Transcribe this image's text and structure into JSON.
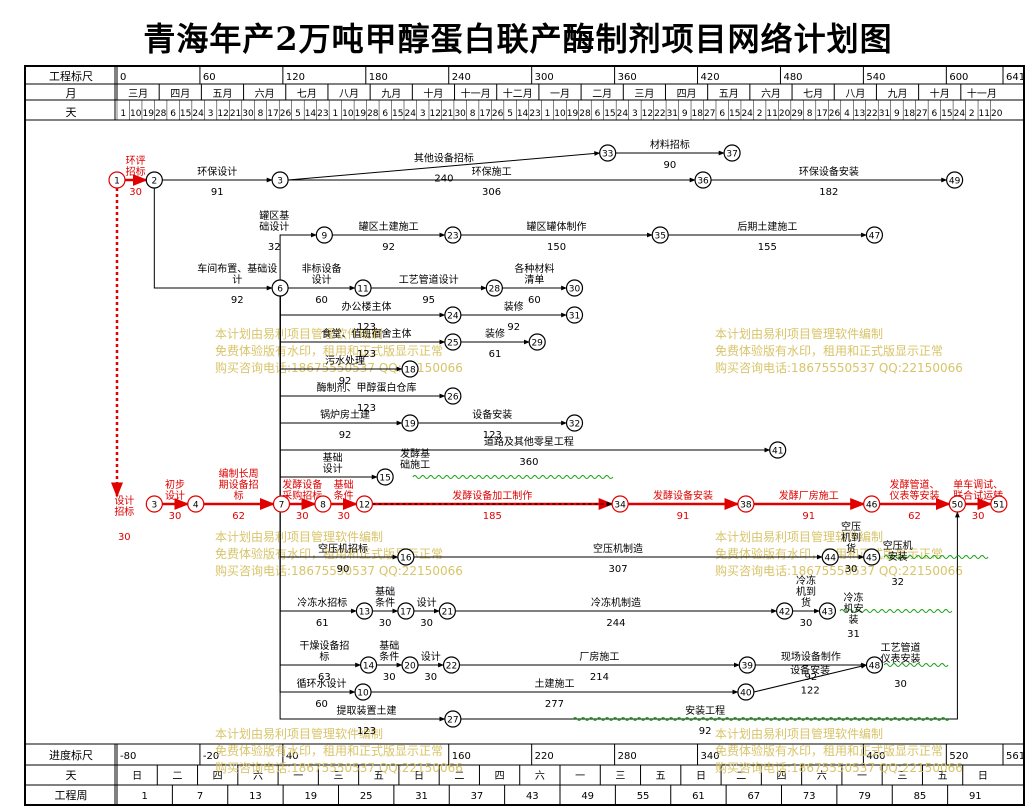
{
  "title": "青海年产2万吨甲醇蛋白联产酶制剂项目网络计划图",
  "top_scale": {
    "label": "工程标尺",
    "ticks": [
      {
        "v": 0,
        "t": "0"
      },
      {
        "v": 60,
        "t": "60"
      },
      {
        "v": 120,
        "t": "120"
      },
      {
        "v": 180,
        "t": "180"
      },
      {
        "v": 240,
        "t": "240"
      },
      {
        "v": 300,
        "t": "300"
      },
      {
        "v": 360,
        "t": "360"
      },
      {
        "v": 420,
        "t": "420"
      },
      {
        "v": 480,
        "t": "480"
      },
      {
        "v": 540,
        "t": "540"
      },
      {
        "v": 600,
        "t": "600"
      },
      {
        "v": 641,
        "t": "641"
      }
    ]
  },
  "month_row": {
    "label": "月",
    "months": [
      "三月",
      "四月",
      "五月",
      "六月",
      "七月",
      "八月",
      "九月",
      "十月",
      "十一月",
      "十二月",
      "一月",
      "二月",
      "三月",
      "四月",
      "五月",
      "六月",
      "七月",
      "八月",
      "九月",
      "十月",
      "十一月"
    ]
  },
  "day_row": {
    "label": "天",
    "days": "1 10 19 28 6 15 24 3 12 21 30 8 17 26 5 14 23 1 10 19 28 6 15 24 3 12 21 30 8 17 26 5 14 23 1 10 19 28 6 15 24 3 12 22 31 9 18 27 6 15 24 2 11 20 29 8 17 26 4 13 22 31 9 18 27 6 15 24 2 11 20"
  },
  "bottom_scale": {
    "label": "进度标尺",
    "ticks": [
      {
        "v": 0,
        "t": "-80"
      },
      {
        "v": 60,
        "t": "-20"
      },
      {
        "v": 120,
        "t": "40"
      },
      {
        "v": 240,
        "t": "160"
      },
      {
        "v": 300,
        "t": "220"
      },
      {
        "v": 360,
        "t": "280"
      },
      {
        "v": 420,
        "t": "340"
      },
      {
        "v": 540,
        "t": "460"
      },
      {
        "v": 600,
        "t": "520"
      },
      {
        "v": 641,
        "t": "561"
      }
    ],
    "weekday_label": "天",
    "weekdays": [
      "日",
      "二",
      "四",
      "六",
      "一",
      "三",
      "五",
      "日",
      "二",
      "四",
      "六",
      "一",
      "三",
      "五",
      "日",
      "二",
      "四",
      "六",
      "一",
      "三",
      "五",
      "日"
    ],
    "week_label": "工程周",
    "weeks": [
      "1",
      "7",
      "13",
      "19",
      "25",
      "31",
      "37",
      "43",
      "49",
      "55",
      "61",
      "67",
      "73",
      "79",
      "85",
      "91"
    ]
  },
  "watermark": [
    "本计划由易利项目管理软件编制",
    "免费体验版有水印，租用和正式版显示正常",
    "购买咨询电话:18675550537 QQ:22150066"
  ],
  "nodes": [
    {
      "id": "1",
      "d": 0,
      "y": 180,
      "crit": true
    },
    {
      "id": "2",
      "d": 27,
      "y": 180
    },
    {
      "id": "3",
      "d": 118,
      "y": 180
    },
    {
      "id": "6",
      "d": 118,
      "y": 288
    },
    {
      "id": "9",
      "d": 150,
      "y": 235
    },
    {
      "id": "11",
      "d": 178,
      "y": 288
    },
    {
      "id": "24",
      "d": 243,
      "y": 315
    },
    {
      "id": "31",
      "d": 331,
      "y": 315
    },
    {
      "id": "25",
      "d": 243,
      "y": 342
    },
    {
      "id": "29",
      "d": 304,
      "y": 342
    },
    {
      "id": "18",
      "d": 212,
      "y": 369
    },
    {
      "id": "26",
      "d": 243,
      "y": 396
    },
    {
      "id": "19",
      "d": 212,
      "y": 423
    },
    {
      "id": "32",
      "d": 331,
      "y": 423
    },
    {
      "id": "41",
      "d": 478,
      "y": 450
    },
    {
      "id": "15",
      "d": 194,
      "y": 477
    },
    {
      "id": "23",
      "d": 243,
      "y": 235
    },
    {
      "id": "35",
      "d": 393,
      "y": 235
    },
    {
      "id": "47",
      "d": 548,
      "y": 235
    },
    {
      "id": "28",
      "d": 273,
      "y": 288
    },
    {
      "id": "30",
      "d": 331,
      "y": 288
    },
    {
      "id": "33",
      "d": 355,
      "y": 153
    },
    {
      "id": "37",
      "d": 445,
      "y": 153
    },
    {
      "id": "36",
      "d": 424,
      "y": 180
    },
    {
      "id": "49",
      "d": 606,
      "y": 180
    },
    {
      "id": "3b",
      "label": "3",
      "d": 27,
      "y": 504,
      "crit": true
    },
    {
      "id": "4",
      "d": 57,
      "y": 504,
      "crit": true
    },
    {
      "id": "7",
      "d": 119,
      "y": 504,
      "crit": true
    },
    {
      "id": "8",
      "d": 149,
      "y": 504,
      "crit": true
    },
    {
      "id": "12",
      "d": 179,
      "y": 504,
      "crit": true
    },
    {
      "id": "34",
      "d": 364,
      "y": 504,
      "crit": true
    },
    {
      "id": "38",
      "d": 455,
      "y": 504,
      "crit": true
    },
    {
      "id": "46",
      "d": 546,
      "y": 504,
      "crit": true
    },
    {
      "id": "50",
      "d": 608,
      "y": 504,
      "crit": true
    },
    {
      "id": "51",
      "d": 638,
      "y": 504,
      "crit": true
    },
    {
      "id": "16",
      "d": 209,
      "y": 557
    },
    {
      "id": "44",
      "d": 516,
      "y": 557
    },
    {
      "id": "45",
      "d": 546,
      "y": 557
    },
    {
      "id": "13",
      "d": 179,
      "y": 611
    },
    {
      "id": "17",
      "d": 209,
      "y": 611
    },
    {
      "id": "21",
      "d": 239,
      "y": 611
    },
    {
      "id": "42",
      "d": 483,
      "y": 611
    },
    {
      "id": "43",
      "d": 514,
      "y": 611
    },
    {
      "id": "14",
      "d": 182,
      "y": 665
    },
    {
      "id": "20",
      "d": 212,
      "y": 665
    },
    {
      "id": "22",
      "d": 242,
      "y": 665
    },
    {
      "id": "39",
      "d": 456,
      "y": 665
    },
    {
      "id": "48",
      "d": 548,
      "y": 665
    },
    {
      "id": "10",
      "d": 178,
      "y": 692
    },
    {
      "id": "40",
      "d": 455,
      "y": 692
    },
    {
      "id": "27",
      "d": 243,
      "y": 719
    }
  ],
  "activities": [
    {
      "f": "1",
      "t": "2",
      "name": "环评\n招标",
      "dur": "30",
      "crit": true
    },
    {
      "f": "2",
      "t": "3",
      "name": "环保设计",
      "dur": "91"
    },
    {
      "f": "3",
      "t": "33",
      "name": "其他设备招标",
      "dur": "240"
    },
    {
      "f": "33",
      "t": "37",
      "name": "材料招标",
      "dur": "90"
    },
    {
      "f": "3",
      "t": "36",
      "name": "环保施工",
      "dur": "306"
    },
    {
      "f": "36",
      "t": "49",
      "name": "环保设备安装",
      "dur": "182"
    },
    {
      "f": "6",
      "t": "9",
      "path": "vh",
      "name": "罐区基\n础设计",
      "dur": "32",
      "lx": -28
    },
    {
      "f": "9",
      "t": "23",
      "name": "罐区土建施工",
      "dur": "92"
    },
    {
      "f": "23",
      "t": "35",
      "name": "罐区罐体制作",
      "dur": "150"
    },
    {
      "f": "35",
      "t": "47",
      "name": "后期土建施工",
      "dur": "155"
    },
    {
      "f": "2",
      "t": "6",
      "path": "vh",
      "name": "车间布置、基础设\n计",
      "dur": "92",
      "lx": 20
    },
    {
      "f": "6",
      "t": "11",
      "name": "非标设备\n设计",
      "dur": "60"
    },
    {
      "f": "11",
      "t": "28",
      "name": "工艺管道设计",
      "dur": "95"
    },
    {
      "f": "28",
      "t": "30",
      "name": "各种材料\n清单",
      "dur": "60"
    },
    {
      "f": "6",
      "t": "24",
      "path": "vh",
      "name": "办公楼主体",
      "dur": "123"
    },
    {
      "f": "24",
      "t": "31",
      "name": "装修",
      "dur": "92"
    },
    {
      "f": "6",
      "t": "25",
      "path": "vh",
      "name": "食堂、值班宿舍主体",
      "dur": "123"
    },
    {
      "f": "25",
      "t": "29",
      "name": "装修",
      "dur": "61"
    },
    {
      "f": "6",
      "t": "18",
      "path": "vh",
      "name": "污水处理",
      "dur": "92"
    },
    {
      "f": "6",
      "t": "26",
      "path": "vh",
      "name": "酶制剂、甲醇蛋白仓库",
      "dur": "123"
    },
    {
      "f": "6",
      "t": "19",
      "path": "vh",
      "name": "锅炉房土建",
      "dur": "92"
    },
    {
      "f": "19",
      "t": "32",
      "name": "设备安装",
      "dur": "123"
    },
    {
      "f": "6",
      "t": "41",
      "path": "vh",
      "name": "道路及其他零星工程",
      "dur": "360"
    },
    {
      "f": "3b",
      "t": "4",
      "name": "初步\n设计",
      "dur": "30",
      "crit": true
    },
    {
      "f": "4",
      "t": "7",
      "name": "编制长周\n期设备招\n标",
      "dur": "62",
      "crit": true
    },
    {
      "f": "7",
      "t": "8",
      "name": "发酵设备\n采购招标",
      "dur": "30",
      "crit": true
    },
    {
      "f": "8",
      "t": "12",
      "name": "基础\n条件",
      "dur": "30",
      "crit": true
    },
    {
      "f": "12",
      "t": "34",
      "name": "发酵设备加工制作",
      "dur": "185",
      "crit": true
    },
    {
      "f": "34",
      "t": "38",
      "name": "发酵设备安装",
      "dur": "91",
      "crit": true
    },
    {
      "f": "38",
      "t": "46",
      "name": "发酵厂房施工",
      "dur": "91",
      "crit": true
    },
    {
      "f": "46",
      "t": "50",
      "name": "发酵管道、\n仪表等安装",
      "dur": "62",
      "crit": true
    },
    {
      "f": "50",
      "t": "51",
      "name": "单车调试、\n联合试运转",
      "dur": "30",
      "crit": true
    },
    {
      "f": "6",
      "t": "15",
      "path": "vh",
      "name": "基础\n设计",
      "dur": ""
    },
    {
      "f": "6",
      "t": "16",
      "path": "vh",
      "name": "空压机招标",
      "dur": "90"
    },
    {
      "f": "16",
      "t": "44",
      "name": "空压机制造",
      "dur": "307"
    },
    {
      "f": "44",
      "t": "45",
      "name": "空压\n机到\n货",
      "dur": "30"
    },
    {
      "f": "6",
      "t": "13",
      "path": "vh",
      "name": "冷冻水招标",
      "dur": "61"
    },
    {
      "f": "13",
      "t": "17",
      "name": "基础\n条件",
      "dur": "30"
    },
    {
      "f": "17",
      "t": "21",
      "name": "设计",
      "dur": "30"
    },
    {
      "f": "21",
      "t": "42",
      "name": "冷冻机制造",
      "dur": "244"
    },
    {
      "f": "42",
      "t": "43",
      "name": "冷冻\n机到\n货",
      "dur": "30"
    },
    {
      "f": "6",
      "t": "14",
      "path": "vh",
      "name": "干燥设备招\n标",
      "dur": "63"
    },
    {
      "f": "14",
      "t": "20",
      "name": "基础\n条件",
      "dur": "30"
    },
    {
      "f": "20",
      "t": "22",
      "name": "设计",
      "dur": "30"
    },
    {
      "f": "22",
      "t": "39",
      "name": "厂房施工",
      "dur": "214"
    },
    {
      "f": "39",
      "t": "48",
      "name": "现场设备制作",
      "dur": "92"
    },
    {
      "f": "6",
      "t": "10",
      "path": "vh",
      "name": "循环水设计",
      "dur": "60"
    },
    {
      "f": "10",
      "t": "40",
      "name": "土建施工",
      "dur": "277"
    },
    {
      "f": "40",
      "t": "48",
      "name": "设备安装",
      "dur": "122"
    },
    {
      "f": "6",
      "t": "27",
      "path": "vh",
      "name": "提取装置土建",
      "dur": "123"
    },
    {
      "f": "27",
      "t": "50",
      "path": "hv",
      "name": "安装工程",
      "dur": "92"
    }
  ],
  "dashed_links": [
    [
      "12",
      "34"
    ],
    [
      "1",
      "3b"
    ]
  ],
  "node_labels": [
    {
      "node": "15",
      "name": "发酵基\n础施工",
      "dx": 30,
      "dy": -20
    },
    {
      "node": "45",
      "name": "空压机\n安装",
      "dur": "32",
      "dx": 26,
      "dy": -8
    },
    {
      "node": "43",
      "name": "冷冻\n机安\n装",
      "dur": "31",
      "dx": 26,
      "dy": -10
    },
    {
      "node": "48",
      "name": "工艺管道\n仪表安装",
      "dur": "30",
      "dx": 26,
      "dy": -14
    },
    {
      "node": "3b",
      "name": "设计\n招标",
      "dur": "30",
      "dx": -30,
      "dy": 0
    }
  ]
}
